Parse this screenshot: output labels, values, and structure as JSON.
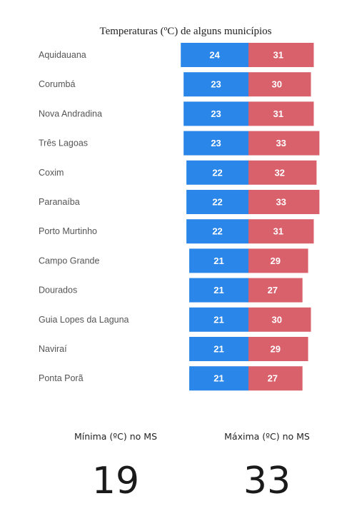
{
  "chart_data": {
    "type": "bar",
    "title": "Temperaturas (ºC) de alguns municípios",
    "categories": [
      "Aquidauana",
      "Corumbá",
      "Nova Andradina",
      "Três Lagoas",
      "Coxim",
      "Paranaíba",
      "Porto Murtinho",
      "Campo Grande",
      "Dourados",
      "Guia Lopes da Laguna",
      "Naviraí",
      "Ponta Porã"
    ],
    "series": [
      {
        "values": [
          24,
          23,
          23,
          23,
          22,
          22,
          22,
          21,
          21,
          21,
          21,
          21
        ],
        "color": "#2a86e8"
      },
      {
        "values": [
          31,
          30,
          31,
          33,
          32,
          33,
          31,
          29,
          27,
          30,
          29,
          27
        ],
        "color": "#d9616c"
      }
    ],
    "grid": false
  },
  "stats": {
    "min_label": "Mínima (ºC) no MS",
    "min_value": "19",
    "max_label": "Máxima (ºC) no MS",
    "max_value": "33"
  }
}
